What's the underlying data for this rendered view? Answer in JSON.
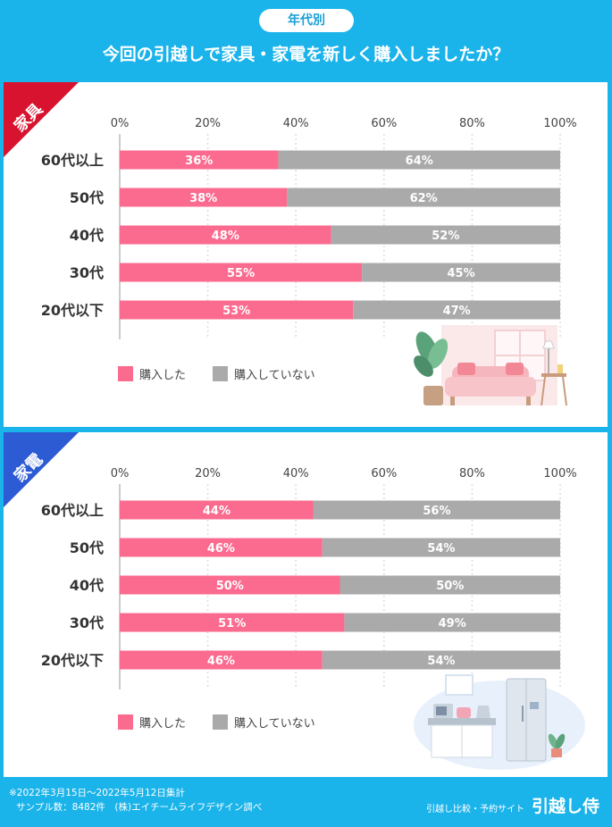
{
  "header": {
    "badge": "年代別",
    "title": "今回の引越しで家具・家電を新しく購入しましたか？"
  },
  "legend": {
    "bought": "購入した",
    "not_bought": "購入していない"
  },
  "colors": {
    "bought": "#fb6b8f",
    "not_bought": "#aaaaaa",
    "background": "#1ab3ea",
    "furniture_corner": "#d8132f",
    "appliance_corner": "#2c5bd3"
  },
  "chart_data": [
    {
      "type": "bar",
      "orientation": "horizontal-stacked-100",
      "title": "家具",
      "categories": [
        "60代以上",
        "50代",
        "40代",
        "30代",
        "20代以下"
      ],
      "series": [
        {
          "name": "購入した",
          "values": [
            36,
            38,
            48,
            55,
            53
          ]
        },
        {
          "name": "購入していない",
          "values": [
            64,
            62,
            52,
            45,
            47
          ]
        }
      ],
      "xticks": [
        "0%",
        "20%",
        "40%",
        "60%",
        "80%",
        "100%"
      ],
      "xlim": [
        0,
        100
      ],
      "grid": true,
      "legend": "bottom-left"
    },
    {
      "type": "bar",
      "orientation": "horizontal-stacked-100",
      "title": "家電",
      "categories": [
        "60代以上",
        "50代",
        "40代",
        "30代",
        "20代以下"
      ],
      "series": [
        {
          "name": "購入した",
          "values": [
            44,
            46,
            50,
            51,
            46
          ]
        },
        {
          "name": "購入していない",
          "values": [
            56,
            54,
            50,
            49,
            54
          ]
        }
      ],
      "xticks": [
        "0%",
        "20%",
        "40%",
        "60%",
        "80%",
        "100%"
      ],
      "xlim": [
        0,
        100
      ],
      "grid": true,
      "legend": "bottom-left"
    }
  ],
  "footer": {
    "note_line1": "※2022年3月15日〜2022年5月12日集計",
    "note_line2": "サンプル数：8482件　(株)エイチームライフデザイン調べ",
    "brand_sub": "引越し比較・予約サイト",
    "brand_logo": "引越し侍"
  }
}
